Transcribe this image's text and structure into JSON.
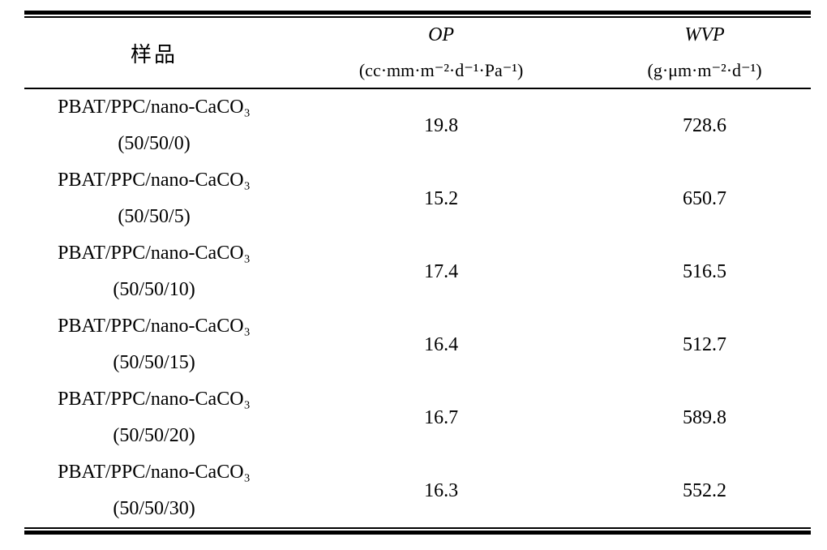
{
  "colors": {
    "background": "#ffffff",
    "text": "#000000",
    "rule": "#000000"
  },
  "table": {
    "header": {
      "sample_label": "样品",
      "op_label": "OP",
      "op_unit": "(cc·mm·m⁻²·d⁻¹·Pa⁻¹)",
      "wvp_label": "WVP",
      "wvp_unit": "(g·μm·m⁻²·d⁻¹)"
    },
    "rows": [
      {
        "name": "PBAT/PPC/nano-CaCO₃",
        "ratio": "(50/50/0)",
        "op": "19.8",
        "wvp": "728.6"
      },
      {
        "name": "PBAT/PPC/nano-CaCO₃",
        "ratio": "(50/50/5)",
        "op": "15.2",
        "wvp": "650.7"
      },
      {
        "name": "PBAT/PPC/nano-CaCO₃",
        "ratio": "(50/50/10)",
        "op": "17.4",
        "wvp": "516.5"
      },
      {
        "name": "PBAT/PPC/nano-CaCO₃",
        "ratio": "(50/50/15)",
        "op": "16.4",
        "wvp": "512.7"
      },
      {
        "name": "PBAT/PPC/nano-CaCO₃",
        "ratio": "(50/50/20)",
        "op": "16.7",
        "wvp": "589.8"
      },
      {
        "name": "PBAT/PPC/nano-CaCO₃",
        "ratio": "(50/50/30)",
        "op": "16.3",
        "wvp": "552.2"
      }
    ]
  }
}
